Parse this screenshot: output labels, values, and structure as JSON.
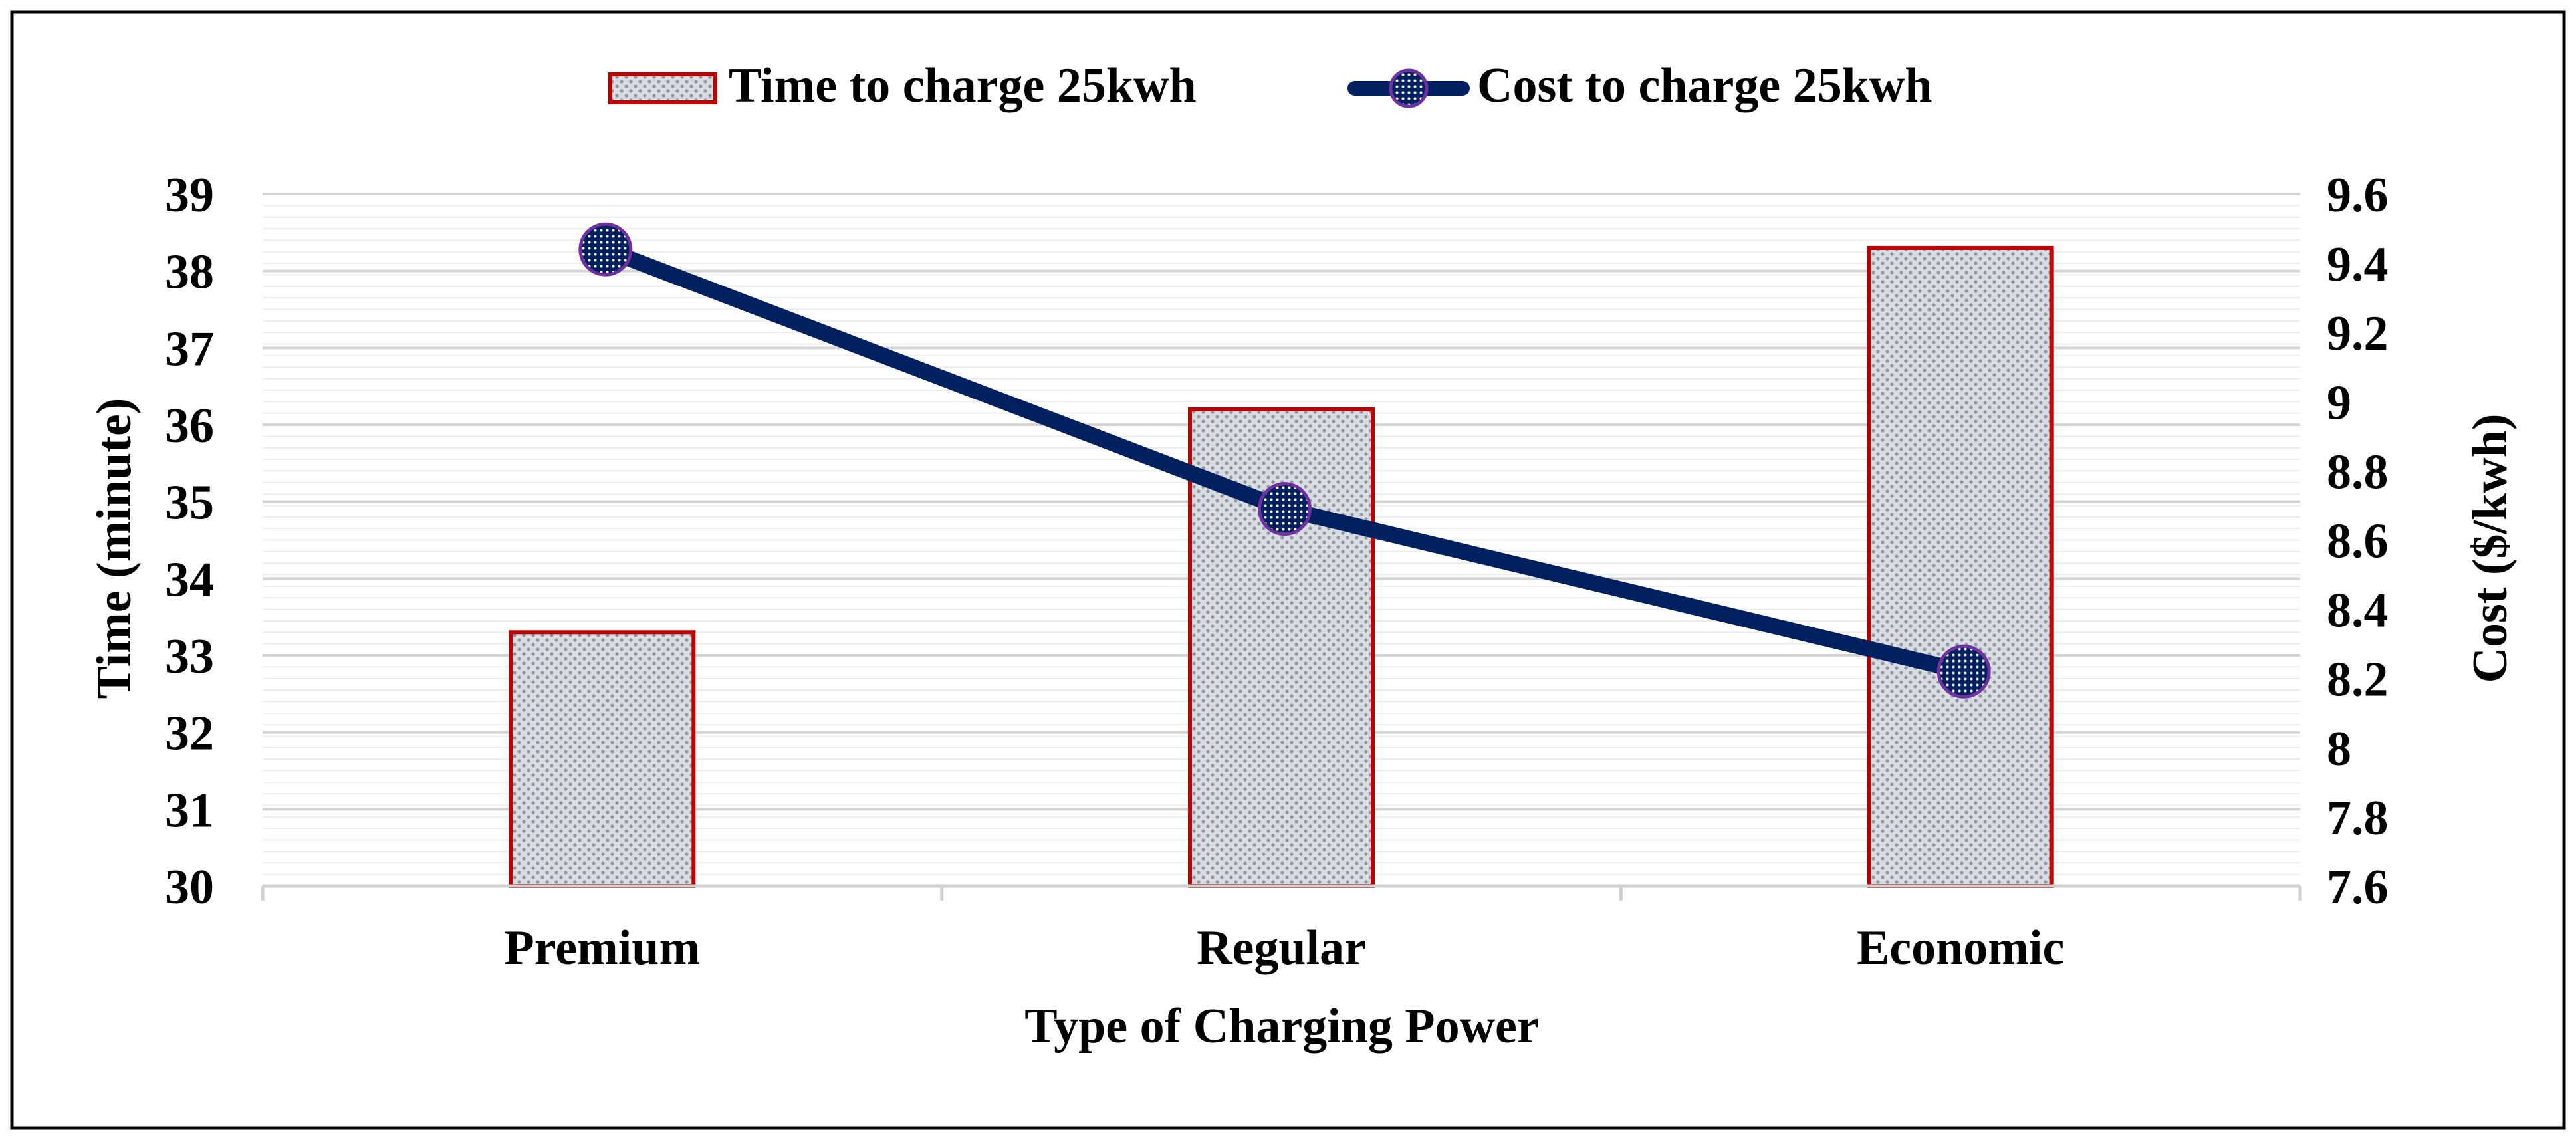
{
  "colors": {
    "bar_border": "#c00000",
    "bar_fill": "#cfd3d8",
    "bar_dot": "#8d96a3",
    "line": "#002060",
    "marker_ring": "#7030a0",
    "grid": "#e3e3e3",
    "frame": "#000000"
  },
  "chart_data": {
    "type": "bar",
    "title": "",
    "xlabel": "Type of Charging Power",
    "ylabel": "Time  (minute)",
    "y2label": "Cost ($/kwh)",
    "categories": [
      "Premium",
      "Regular",
      "Economic"
    ],
    "ylim": [
      30,
      39
    ],
    "y2lim": [
      7.6,
      9.6
    ],
    "yticks": [
      "30",
      "31",
      "32",
      "33",
      "34",
      "35",
      "36",
      "37",
      "38",
      "39"
    ],
    "y2ticks": [
      "7.6",
      "7.8",
      "8",
      "8.2",
      "8.4",
      "8.6",
      "8.8",
      "9",
      "9.2",
      "9.4",
      "9.6"
    ],
    "legend_position": "top",
    "grid": true,
    "series": [
      {
        "name": "Time to charge 25kwh",
        "kind": "bar",
        "axis": "left",
        "values": [
          33.3,
          36.2,
          38.3
        ]
      },
      {
        "name": "Cost to charge 25kwh",
        "kind": "line",
        "axis": "right",
        "values": [
          9.44,
          8.69,
          8.22
        ]
      }
    ]
  }
}
